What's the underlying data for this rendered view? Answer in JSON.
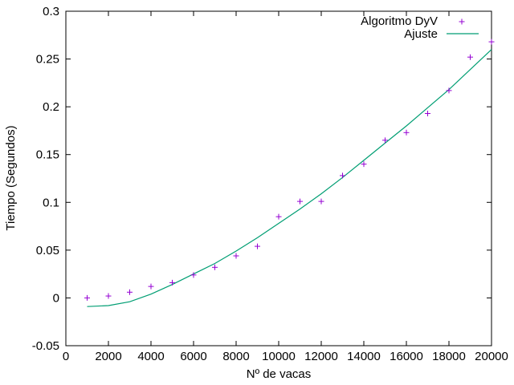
{
  "chart_data": {
    "type": "scatter",
    "title": "",
    "xlabel": "Nº de vacas",
    "ylabel": "Tiempo (Segundos)",
    "xlim": [
      0,
      20000
    ],
    "ylim": [
      -0.05,
      0.3
    ],
    "x_ticks": [
      0,
      2000,
      4000,
      6000,
      8000,
      10000,
      12000,
      14000,
      16000,
      18000,
      20000
    ],
    "y_ticks": [
      -0.05,
      0,
      0.05,
      0.1,
      0.15,
      0.2,
      0.25,
      0.3
    ],
    "x_tick_labels": [
      "0",
      "2000",
      "4000",
      "6000",
      "8000",
      "10000",
      "12000",
      "14000",
      "16000",
      "18000",
      "20000"
    ],
    "y_tick_labels": [
      "-0.05",
      "0",
      "0.05",
      "0.1",
      "0.15",
      "0.2",
      "0.25",
      "0.3"
    ],
    "grid": false,
    "legend_position": "top-right",
    "series": [
      {
        "name": "Algoritmo DyV",
        "kind": "points",
        "marker": "plus",
        "color": "#9400d3",
        "x": [
          1000,
          2000,
          3000,
          4000,
          5000,
          6000,
          7000,
          8000,
          9000,
          10000,
          11000,
          12000,
          13000,
          14000,
          15000,
          16000,
          17000,
          18000,
          19000,
          20000
        ],
        "y": [
          0.0,
          0.002,
          0.006,
          0.012,
          0.016,
          0.024,
          0.032,
          0.044,
          0.054,
          0.085,
          0.101,
          0.101,
          0.128,
          0.14,
          0.165,
          0.173,
          0.193,
          0.217,
          0.252,
          0.268
        ]
      },
      {
        "name": "Ajuste",
        "kind": "line",
        "color": "#009e73",
        "x": [
          1000,
          2000,
          3000,
          4000,
          5000,
          6000,
          7000,
          8000,
          9000,
          10000,
          11000,
          12000,
          13000,
          14000,
          15000,
          16000,
          17000,
          18000,
          19000,
          20000
        ],
        "y": [
          -0.009,
          -0.008,
          -0.004,
          0.004,
          0.014,
          0.025,
          0.036,
          0.049,
          0.063,
          0.078,
          0.093,
          0.109,
          0.126,
          0.144,
          0.162,
          0.18,
          0.199,
          0.218,
          0.239,
          0.26
        ]
      }
    ]
  }
}
